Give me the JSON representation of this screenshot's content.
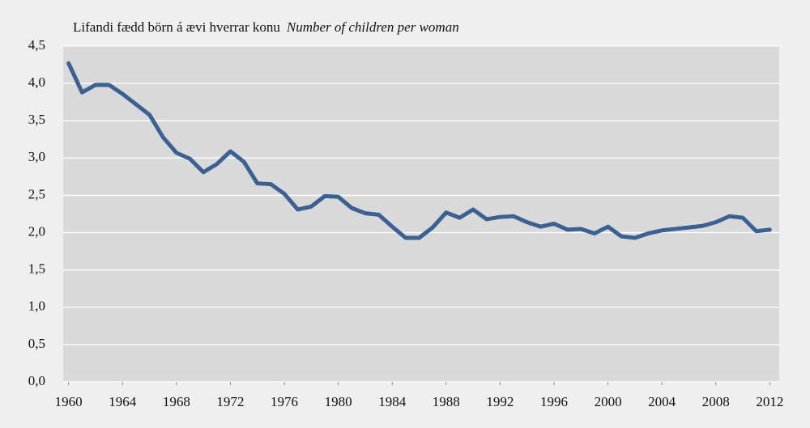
{
  "chart_data": {
    "type": "line",
    "title": "Lifandi fædd börn á ævi hverrar konu",
    "subtitle": "Number of children per woman",
    "x": [
      1960,
      1961,
      1962,
      1963,
      1964,
      1965,
      1966,
      1967,
      1968,
      1969,
      1970,
      1971,
      1972,
      1973,
      1974,
      1975,
      1976,
      1977,
      1978,
      1979,
      1980,
      1981,
      1982,
      1983,
      1984,
      1985,
      1986,
      1987,
      1988,
      1989,
      1990,
      1991,
      1992,
      1993,
      1994,
      1995,
      1996,
      1997,
      1998,
      1999,
      2000,
      2001,
      2002,
      2003,
      2004,
      2005,
      2006,
      2007,
      2008,
      2009,
      2010,
      2011,
      2012
    ],
    "values": [
      4.27,
      3.88,
      3.98,
      3.98,
      3.86,
      3.72,
      3.58,
      3.28,
      3.07,
      2.99,
      2.81,
      2.92,
      3.09,
      2.95,
      2.66,
      2.65,
      2.52,
      2.31,
      2.35,
      2.49,
      2.48,
      2.33,
      2.26,
      2.24,
      2.08,
      1.93,
      1.93,
      2.07,
      2.27,
      2.2,
      2.31,
      2.18,
      2.21,
      2.22,
      2.14,
      2.08,
      2.12,
      2.04,
      2.05,
      1.99,
      2.08,
      1.95,
      1.93,
      1.99,
      2.03,
      2.05,
      2.07,
      2.09,
      2.14,
      2.22,
      2.2,
      2.02,
      2.04
    ],
    "color": "#3b6092",
    "xlim": [
      1959.6,
      2012.7
    ],
    "xticks": [
      1960,
      1964,
      1968,
      1972,
      1976,
      1980,
      1984,
      1988,
      1992,
      1996,
      2000,
      2004,
      2008,
      2012
    ],
    "ylim": [
      0,
      4.5
    ],
    "yticks": [
      {
        "value": 0,
        "label": "0,0"
      },
      {
        "value": 0.5,
        "label": "0,5"
      },
      {
        "value": 1,
        "label": "1,0"
      },
      {
        "value": 1.5,
        "label": "1,5"
      },
      {
        "value": 2,
        "label": "2,0"
      },
      {
        "value": 2.5,
        "label": "2,5"
      },
      {
        "value": 3,
        "label": "3,0"
      },
      {
        "value": 3.5,
        "label": "3,5"
      },
      {
        "value": 4,
        "label": "4,0"
      },
      {
        "value": 4.5,
        "label": "4,5"
      }
    ],
    "grid": true
  }
}
